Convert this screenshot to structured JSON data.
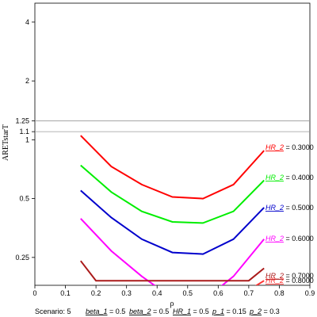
{
  "chart_data": {
    "type": "line",
    "xlabel": "ρ",
    "ylabel": "ARETstarT",
    "xlim": [
      0,
      0.9
    ],
    "ylim": [
      0.18,
      5
    ],
    "yscale": "log",
    "xticks": [
      0,
      0.1,
      0.2,
      0.3,
      0.4,
      0.5,
      0.6,
      0.7,
      0.8,
      0.9
    ],
    "xtick_labels": [
      "0",
      "0.1",
      "0.2",
      "0.3",
      "0.4",
      "0.5",
      "0.6",
      "0.7",
      "0.8",
      "0.9"
    ],
    "yticks": [
      0.25,
      0.5,
      1,
      1.1,
      1.25,
      2,
      4
    ],
    "ytick_labels": [
      "0.25",
      "0.5",
      "1",
      "1.1",
      "1.25",
      "2",
      "4"
    ],
    "reference_lines": [
      1.1,
      1.25
    ],
    "grid": false,
    "series": [
      {
        "name": "0.3000",
        "label_prefix": "HR_2",
        "label_suffix": " = 0.3000",
        "color": "#ff0000",
        "x": [
          0.15,
          0.25,
          0.35,
          0.45,
          0.55,
          0.65,
          0.75
        ],
        "y": [
          1.05,
          0.73,
          0.59,
          0.51,
          0.5,
          0.59,
          0.88
        ]
      },
      {
        "name": "0.4000",
        "label_prefix": "HR_2",
        "label_suffix": " = 0.4000",
        "color": "#00ee00",
        "x": [
          0.15,
          0.25,
          0.35,
          0.45,
          0.55,
          0.65,
          0.75
        ],
        "y": [
          0.74,
          0.54,
          0.43,
          0.38,
          0.375,
          0.43,
          0.62
        ]
      },
      {
        "name": "0.5000",
        "label_prefix": "HR_2",
        "label_suffix": " = 0.5000",
        "color": "#0000cc",
        "x": [
          0.15,
          0.25,
          0.35,
          0.45,
          0.55,
          0.65,
          0.75
        ],
        "y": [
          0.55,
          0.4,
          0.31,
          0.265,
          0.26,
          0.31,
          0.45
        ]
      },
      {
        "name": "0.6000",
        "label_prefix": "HR_2",
        "label_suffix": " = 0.6000",
        "color": "#ff00ff",
        "x": [
          0.15,
          0.25,
          0.35,
          0.45,
          0.55,
          0.65,
          0.75
        ],
        "y": [
          0.395,
          0.27,
          0.2,
          0.155,
          0.15,
          0.2,
          0.31
        ]
      },
      {
        "name": "0.7000",
        "label_prefix": "HR_2",
        "label_suffix": " = 0.7000",
        "color": "#aa1a1a",
        "x": [
          0.15,
          0.2,
          0.7,
          0.75
        ],
        "y": [
          0.24,
          0.19,
          0.19,
          0.22
        ]
      },
      {
        "name": "0.8000",
        "label_prefix": "HR_2",
        "label_suffix": " = 0.8000",
        "color": "#ff3333",
        "x": [
          0.7,
          0.75
        ],
        "y": [
          0.17,
          0.19
        ]
      }
    ],
    "caption": {
      "scenario": "Scenario: 5",
      "params": [
        {
          "name": "beta_1",
          "value": " = 0.5"
        },
        {
          "name": "beta_2",
          "value": " = 0.5"
        },
        {
          "name": "HR_1",
          "value": " = 0.5"
        },
        {
          "name": "p_1",
          "value": " = 0.15"
        },
        {
          "name": "p_2",
          "value": " = 0.3"
        }
      ]
    }
  }
}
